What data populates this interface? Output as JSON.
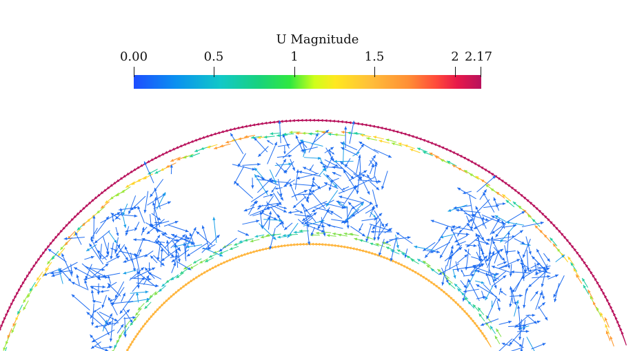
{
  "legend": {
    "title": "U Magnitude",
    "ticks": [
      {
        "label": "0.00",
        "value": 0.0
      },
      {
        "label": "0.5",
        "value": 0.5
      },
      {
        "label": "1",
        "value": 1.0
      },
      {
        "label": "1.5",
        "value": 1.5
      },
      {
        "label": "2",
        "value": 2.0
      },
      {
        "label": "2.17",
        "value": 2.17
      }
    ],
    "min": 0.0,
    "max": 2.17
  },
  "colors": {
    "low": "#1e6cf0",
    "high": "#b8125c",
    "mid": "#ffe820"
  }
}
